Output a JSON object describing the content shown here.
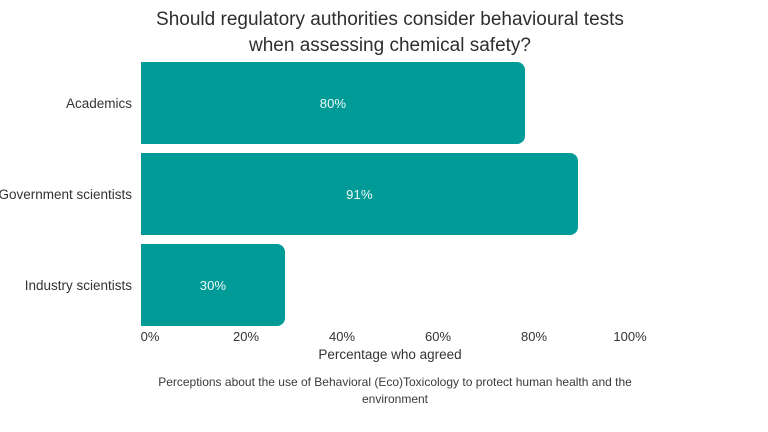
{
  "chart_data": {
    "type": "bar",
    "orientation": "horizontal",
    "title": "Should regulatory authorities consider behavioural tests\nwhen assessing chemical safety?",
    "categories": [
      "Academics",
      "Government scientists",
      "Industry scientists"
    ],
    "values": [
      80,
      91,
      30
    ],
    "value_labels": [
      "80%",
      "91%",
      "30%"
    ],
    "xlabel": "Percentage who agreed",
    "caption": "Perceptions about the use of Behavioral (Eco)Toxicology to protect human health and the\nenvironment",
    "xlim": [
      0,
      100
    ],
    "x_ticks": [
      {
        "value": 0,
        "label": "0%"
      },
      {
        "value": 20,
        "label": "20%"
      },
      {
        "value": 40,
        "label": "40%"
      },
      {
        "value": 60,
        "label": "60%"
      },
      {
        "value": 80,
        "label": "80%"
      },
      {
        "value": 100,
        "label": "100%"
      }
    ],
    "grid": false,
    "legend": false,
    "colors": {
      "bar": "#009b96",
      "bar_value_text": "#f2faf9",
      "text": "#333333",
      "title_text": "#2e2e2e",
      "background": "#ffffff"
    }
  }
}
